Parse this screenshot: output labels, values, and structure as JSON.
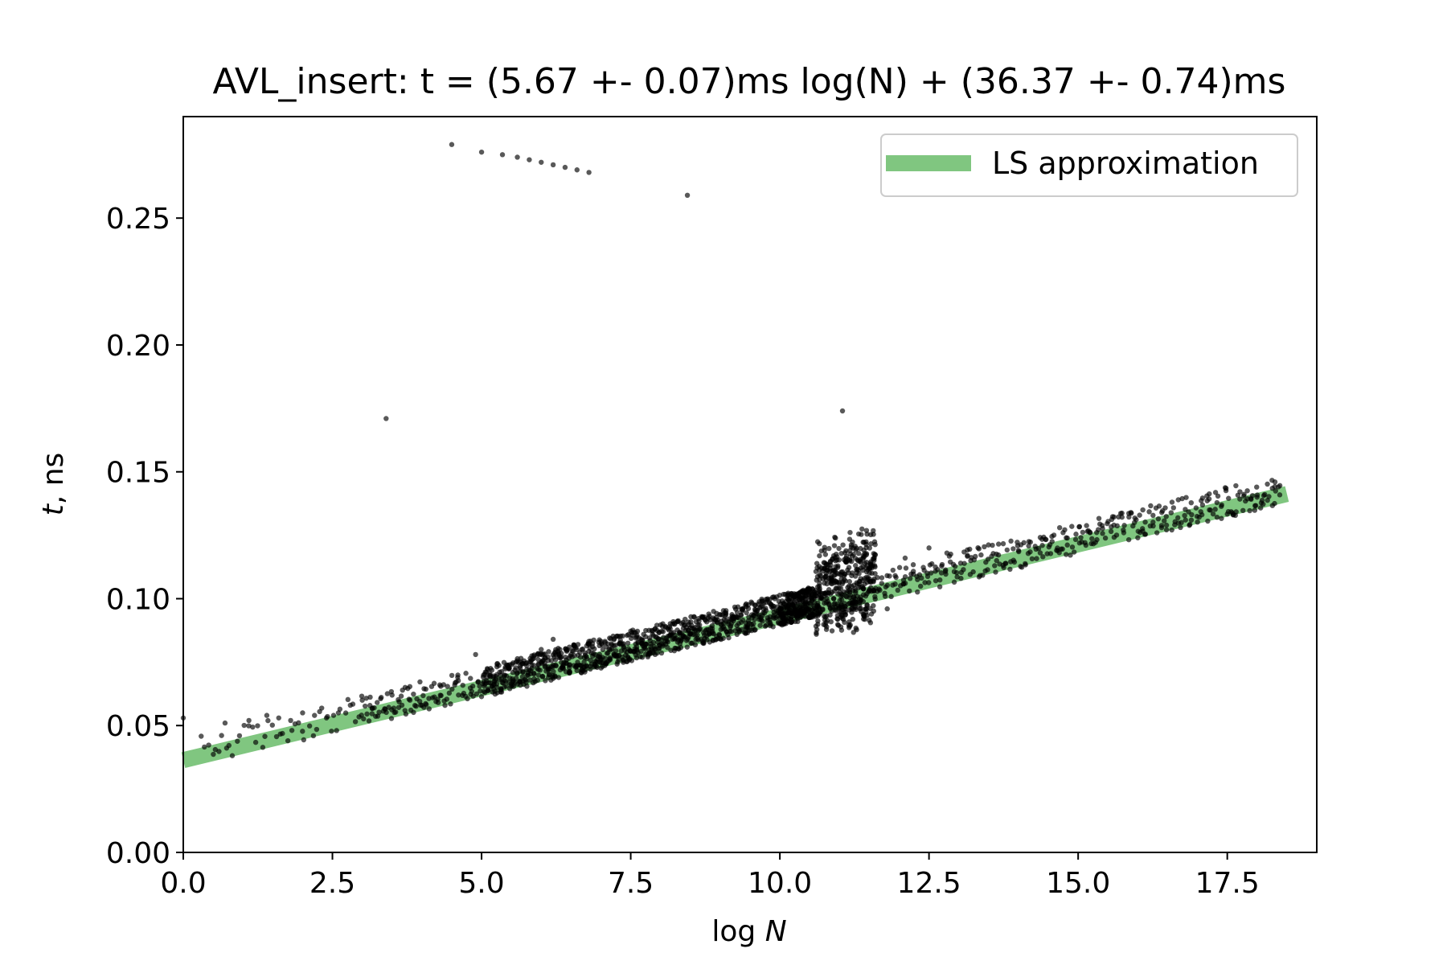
{
  "chart_data": {
    "type": "scatter",
    "title": "AVL_insert: t = (5.67 +- 0.07)ms log(N) + (36.37 +- 0.74)ms",
    "xlabel_main": "log ",
    "xlabel_var": "N",
    "ylabel_var": "t",
    "ylabel_main": ", ns",
    "xlim": [
      0,
      19
    ],
    "ylim": [
      0,
      0.29
    ],
    "x_ticks": [
      0,
      2.5,
      5,
      7.5,
      10,
      12.5,
      15,
      17.5
    ],
    "x_tick_labels": [
      "0.0",
      "2.5",
      "5.0",
      "7.5",
      "10.0",
      "12.5",
      "15.0",
      "17.5"
    ],
    "y_ticks": [
      0,
      0.05,
      0.1,
      0.15,
      0.2,
      0.25
    ],
    "y_tick_labels": [
      "0.00",
      "0.05",
      "0.10",
      "0.15",
      "0.20",
      "0.25"
    ],
    "legend": {
      "position": "top-right",
      "entries": [
        {
          "label": "LS approximation",
          "color": "#2ca02c"
        }
      ]
    },
    "fit_line": {
      "name": "LS approximation",
      "slope": 0.00567,
      "intercept": 0.03637,
      "x_range": [
        0,
        18.5
      ],
      "color": "#2ca02c"
    },
    "points_color": "#000000",
    "outliers": [
      [
        4.5,
        0.279
      ],
      [
        5.0,
        0.276
      ],
      [
        5.35,
        0.275
      ],
      [
        5.6,
        0.274
      ],
      [
        5.8,
        0.273
      ],
      [
        6.0,
        0.272
      ],
      [
        6.2,
        0.271
      ],
      [
        6.4,
        0.27
      ],
      [
        6.6,
        0.269
      ],
      [
        6.8,
        0.268
      ],
      [
        8.45,
        0.259
      ],
      [
        3.4,
        0.171
      ],
      [
        11.05,
        0.174
      ]
    ],
    "key_points": [
      [
        0.0,
        0.053
      ],
      [
        0.7,
        0.051
      ],
      [
        1.1,
        0.052
      ],
      [
        1.4,
        0.054
      ],
      [
        1.6,
        0.053
      ],
      [
        1.8,
        0.052
      ],
      [
        2.0,
        0.055
      ],
      [
        2.2,
        0.054
      ],
      [
        2.4,
        0.053
      ],
      [
        2.6,
        0.055
      ],
      [
        2.8,
        0.058
      ],
      [
        3.0,
        0.06
      ],
      [
        3.2,
        0.057
      ],
      [
        3.5,
        0.062
      ],
      [
        3.8,
        0.06
      ],
      [
        4.0,
        0.058
      ],
      [
        4.3,
        0.066
      ],
      [
        4.6,
        0.069
      ],
      [
        4.9,
        0.078
      ],
      [
        5.2,
        0.066
      ],
      [
        5.4,
        0.073
      ],
      [
        5.8,
        0.072
      ],
      [
        6.0,
        0.08
      ],
      [
        6.2,
        0.084
      ],
      [
        6.5,
        0.078
      ],
      [
        6.8,
        0.082
      ],
      [
        7.0,
        0.076
      ],
      [
        7.3,
        0.076
      ],
      [
        7.6,
        0.081
      ],
      [
        7.9,
        0.08
      ],
      [
        8.2,
        0.084
      ],
      [
        8.5,
        0.086
      ],
      [
        8.9,
        0.091
      ],
      [
        9.3,
        0.088
      ],
      [
        9.6,
        0.094
      ],
      [
        9.9,
        0.097
      ],
      [
        10.3,
        0.091
      ],
      [
        10.6,
        0.093
      ],
      [
        10.9,
        0.1
      ],
      [
        11.1,
        0.107
      ],
      [
        11.4,
        0.104
      ],
      [
        11.8,
        0.096
      ],
      [
        12.1,
        0.116
      ],
      [
        12.5,
        0.12
      ],
      [
        12.8,
        0.118
      ],
      [
        13.2,
        0.115
      ],
      [
        13.6,
        0.113
      ],
      [
        14.0,
        0.119
      ],
      [
        14.4,
        0.121
      ],
      [
        14.8,
        0.124
      ],
      [
        15.2,
        0.126
      ],
      [
        15.6,
        0.129
      ],
      [
        16.0,
        0.124
      ],
      [
        16.4,
        0.128
      ],
      [
        16.8,
        0.131
      ],
      [
        17.2,
        0.135
      ],
      [
        17.6,
        0.133
      ],
      [
        18.0,
        0.14
      ],
      [
        18.3,
        0.146
      ]
    ]
  }
}
